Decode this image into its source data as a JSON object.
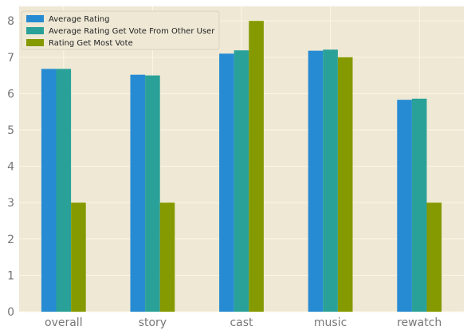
{
  "chart_data": {
    "type": "bar",
    "categories": [
      "overall",
      "story",
      "cast",
      "music",
      "rewatch"
    ],
    "series": [
      {
        "name": "Average Rating",
        "color": "#268bd2",
        "values": [
          6.68,
          6.52,
          7.1,
          7.18,
          5.83
        ]
      },
      {
        "name": "Average Rating Get Vote From Other User",
        "color": "#2aa198",
        "values": [
          6.68,
          6.5,
          7.19,
          7.21,
          5.86
        ]
      },
      {
        "name": "Rating Get Most Vote",
        "color": "#859900",
        "values": [
          3,
          3,
          8,
          7,
          3
        ]
      }
    ],
    "ylim": [
      0,
      8.4
    ],
    "yticks": [
      0,
      1,
      2,
      3,
      4,
      5,
      6,
      7,
      8
    ],
    "grid": true,
    "legend_position": "top-left",
    "background": "#eee8d5",
    "grid_color": "#fdf6e3"
  }
}
